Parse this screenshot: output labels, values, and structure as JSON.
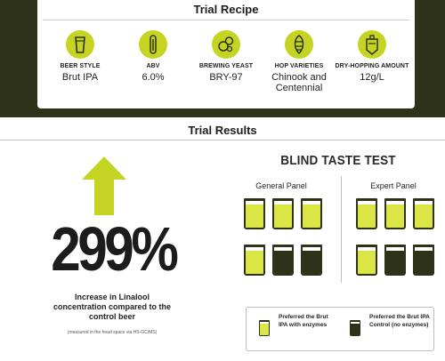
{
  "recipe": {
    "title": "Trial Recipe",
    "items": [
      {
        "icon": "beer-glass-icon",
        "label": "BEER STYLE",
        "value": "Brut IPA"
      },
      {
        "icon": "thermometer-icon",
        "label": "ABV",
        "value": "6.0%"
      },
      {
        "icon": "yeast-cells-icon",
        "label": "BREWING YEAST",
        "value": "BRY-97"
      },
      {
        "icon": "hop-cone-icon",
        "label": "HOP VARIETIES",
        "value": "Chinook and Centennial"
      },
      {
        "icon": "fermenter-tank-icon",
        "label": "DRY-HOPPING AMOUNT",
        "value": "12g/L"
      }
    ]
  },
  "results": {
    "title": "Trial Results",
    "stat": {
      "value": "299%",
      "caption": "Increase in Linalool concentration compared to the control beer",
      "note": "(measured in the head space via HS-GC/MS)"
    },
    "taste_test": {
      "title": "BLIND TASTE TEST",
      "panels": [
        {
          "name": "General Panel",
          "glasses": [
            "light",
            "light",
            "light",
            "light",
            "dark",
            "dark"
          ]
        },
        {
          "name": "Expert Panel",
          "glasses": [
            "light",
            "light",
            "light",
            "light",
            "dark",
            "dark"
          ]
        }
      ],
      "legend": [
        {
          "text": "Preferred the Brut IPA with enzymes",
          "type": "light"
        },
        {
          "text": "Preferred the Brut IPA Control (no enzymes)",
          "type": "dark"
        }
      ]
    }
  },
  "colors": {
    "accent": "#c5d422",
    "dark": "#2e3219",
    "light_beer": "#dbe646"
  }
}
